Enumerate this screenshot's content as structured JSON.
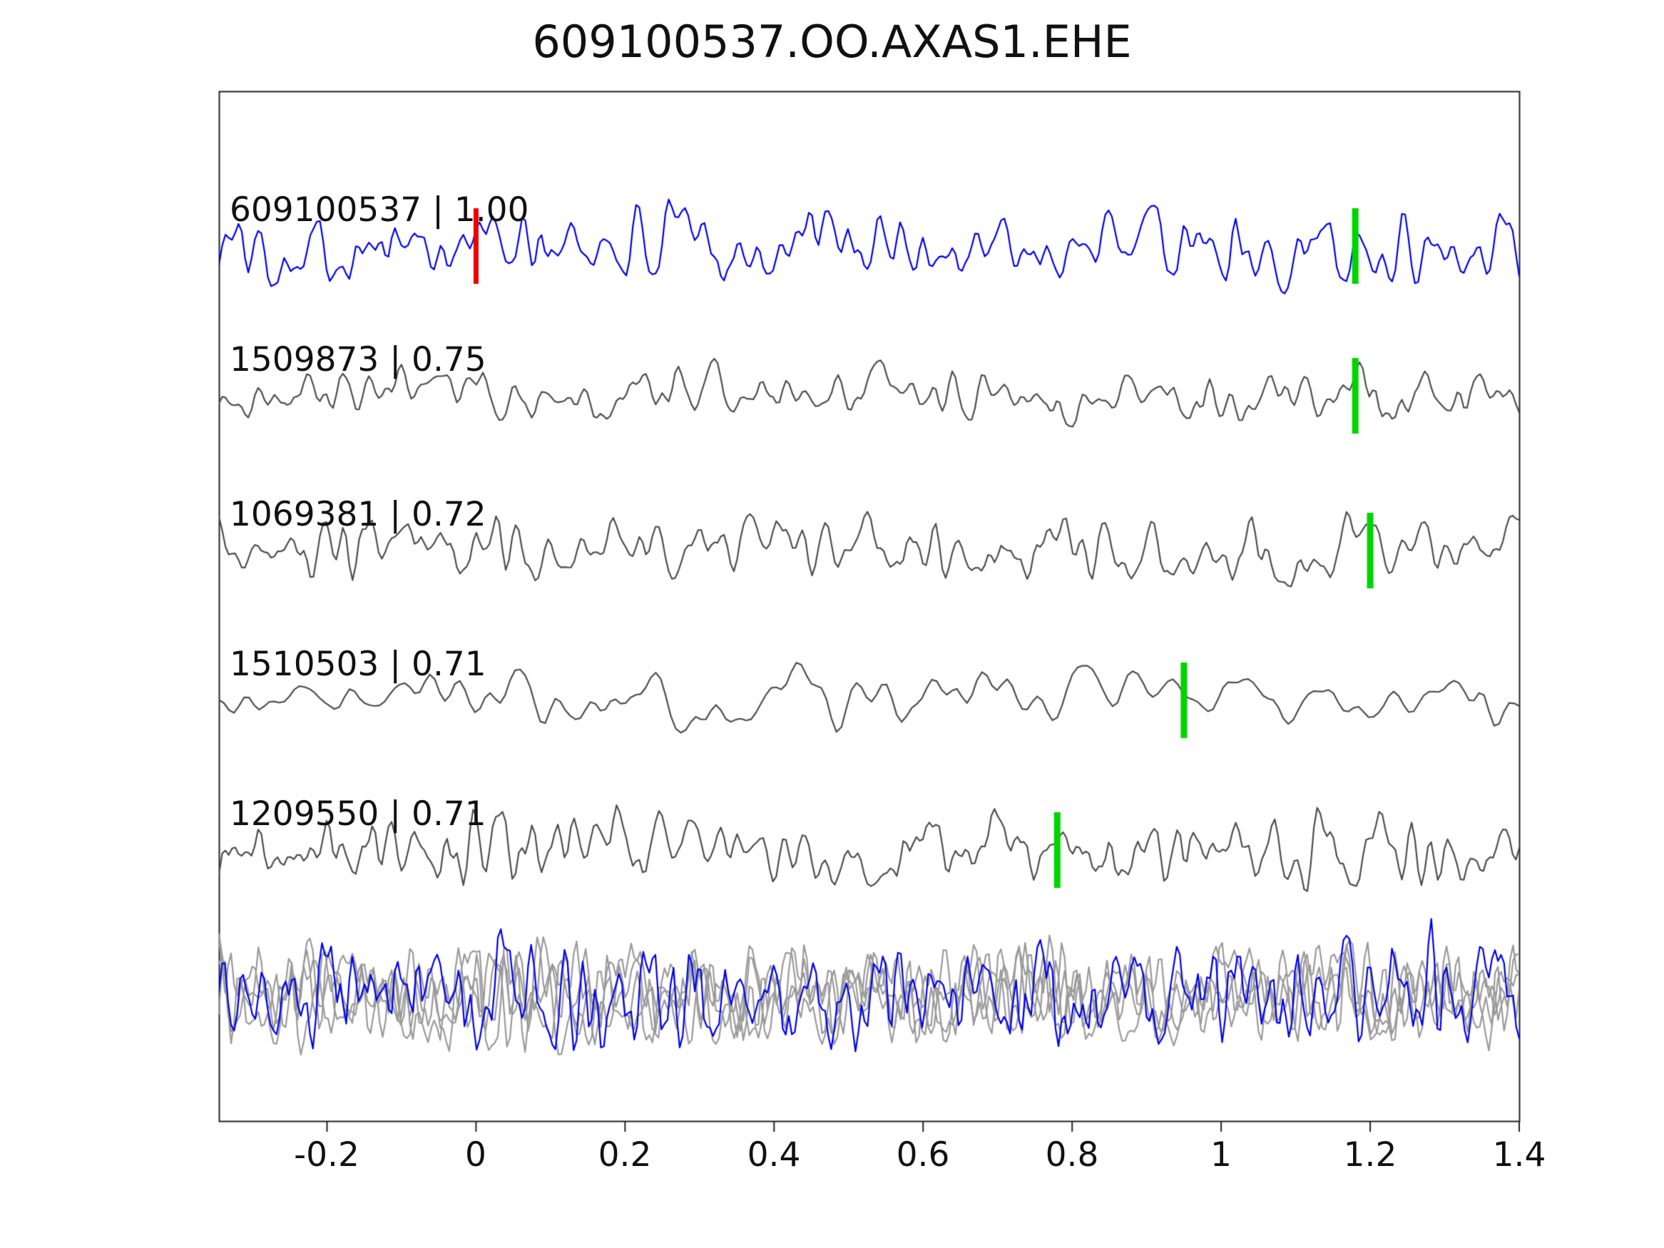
{
  "title": "609100537.OO.AXAS1.EHE",
  "chart_data": {
    "type": "line",
    "title": "609100537.OO.AXAS1.EHE",
    "xlabel": "",
    "ylabel": "",
    "grid": false,
    "legend": "none",
    "x_range": [
      -0.345,
      1.4
    ],
    "x_tick_values": [
      -0.2,
      0,
      0.2,
      0.4,
      0.6,
      0.8,
      1,
      1.2,
      1.4
    ],
    "x_tick_labels": [
      "-0.2",
      "0",
      "0.2",
      "0.4",
      "0.6",
      "0.8",
      "1",
      "1.2",
      "1.4"
    ],
    "description": "Template-matching waveform comparison: reference event trace (blue) above four matched detection traces (gray), each labeled 'event_id | correlation'. Green vertical bars mark pick times on each trace; red bar marks reference time zero on the top trace. Bottom row shows all traces superimposed (gray + blue).",
    "traces": [
      {
        "id": "609100537",
        "correlation": "1.00",
        "label": "609100537 | 1.00",
        "color": "#0000ee",
        "markers": [
          {
            "type": "reference",
            "color": "#ee0000",
            "x": 0.0
          },
          {
            "type": "pick",
            "color": "#00d400",
            "x": 1.18
          }
        ]
      },
      {
        "id": "1509873",
        "correlation": "0.75",
        "label": "1509873 | 0.75",
        "color": "#4d4d4d",
        "markers": [
          {
            "type": "pick",
            "color": "#00d400",
            "x": 1.18
          }
        ]
      },
      {
        "id": "1069381",
        "correlation": "0.72",
        "label": "1069381 | 0.72",
        "color": "#4d4d4d",
        "markers": [
          {
            "type": "pick",
            "color": "#00d400",
            "x": 1.2
          }
        ]
      },
      {
        "id": "1510503",
        "correlation": "0.71",
        "label": "1510503 | 0.71",
        "color": "#4d4d4d",
        "markers": [
          {
            "type": "pick",
            "color": "#00d400",
            "x": 0.95
          }
        ]
      },
      {
        "id": "1209550",
        "correlation": "0.71",
        "label": "1209550 | 0.71",
        "color": "#4d4d4d",
        "markers": [
          {
            "type": "pick",
            "color": "#00d400",
            "x": 0.78
          }
        ]
      }
    ],
    "overlay_row": {
      "description": "all five traces superimposed",
      "gray_color": "#9a9a9a",
      "blue_color": "#0000ee"
    },
    "axis_color": "#222222",
    "background": "#ffffff"
  }
}
